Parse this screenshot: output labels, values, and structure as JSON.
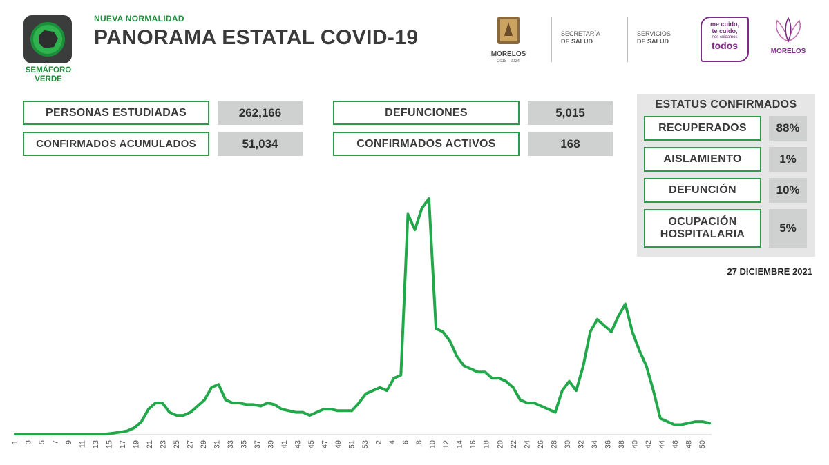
{
  "header": {
    "semaforo": "SEMÁFORO\nVERDE",
    "kicker": "NUEVA NORMALIDAD",
    "title": "PANORAMA ESTATAL COVID-19"
  },
  "logos": {
    "morelos": "MORELOS",
    "morelos_years": "2018 - 2024",
    "secretaria_line1": "SECRETARÍA",
    "secretaria_line2": "DE SALUD",
    "servicios_line1": "SERVICIOS",
    "servicios_line2": "DE SALUD",
    "campaign_line1": "me cuido,",
    "campaign_line2": "te cuido,",
    "campaign_line3": "nos cuidamos",
    "campaign_line4": "todos",
    "morelos_gov": "MORELOS"
  },
  "stats": [
    {
      "label": "PERSONAS ESTUDIADAS",
      "value": "262,166"
    },
    {
      "label": "CONFIRMADOS ACUMULADOS",
      "value": "51,034"
    },
    {
      "label": "DEFUNCIONES",
      "value": "5,015"
    },
    {
      "label": "CONFIRMADOS ACTIVOS",
      "value": "168"
    }
  ],
  "status": {
    "title": "ESTATUS CONFIRMADOS",
    "items": [
      {
        "label": "RECUPERADOS",
        "value": "88%"
      },
      {
        "label": "AISLAMIENTO",
        "value": "1%"
      },
      {
        "label": "DEFUNCIÓN",
        "value": "10%"
      },
      {
        "label": "OCUPACIÓN\nHOSPITALARIA",
        "value": "5%"
      }
    ]
  },
  "date": "27 DICIEMBRE 2021",
  "colors": {
    "green": "#2e9b4a",
    "line": "#22a84a",
    "gray": "#cfd0d0"
  },
  "chart_data": {
    "type": "line",
    "title": "",
    "xlabel": "",
    "ylabel": "",
    "grid": false,
    "tick_labels": [
      "1",
      "3",
      "5",
      "7",
      "9",
      "11",
      "13",
      "15",
      "17",
      "19",
      "21",
      "23",
      "25",
      "27",
      "29",
      "31",
      "33",
      "35",
      "37",
      "39",
      "41",
      "43",
      "45",
      "47",
      "49",
      "51",
      "53",
      "2",
      "4",
      "6",
      "8",
      "10",
      "12",
      "14",
      "16",
      "18",
      "20",
      "22",
      "24",
      "26",
      "28",
      "30",
      "32",
      "34",
      "36",
      "38",
      "40",
      "42",
      "44",
      "46",
      "48",
      "50"
    ],
    "series": [
      {
        "values": [
          0,
          0,
          0,
          0,
          0,
          0,
          0,
          0,
          0,
          0,
          0,
          0,
          0,
          0,
          0.3,
          0.6,
          1,
          2,
          4,
          8,
          10,
          10,
          7,
          6,
          6,
          7,
          9,
          11,
          15,
          16,
          11,
          10,
          10,
          9.5,
          9.5,
          9,
          10,
          9.5,
          8,
          7.5,
          7,
          7,
          6,
          7,
          8,
          8,
          7.5,
          7.5,
          7.5,
          10,
          13,
          14,
          15,
          14,
          18,
          19,
          71,
          66,
          73,
          76,
          34,
          33,
          30,
          25,
          22,
          21,
          20,
          20,
          18,
          18,
          17,
          15,
          11,
          10,
          10,
          9,
          8,
          7,
          14,
          17,
          14,
          22,
          33,
          37,
          35,
          33,
          38,
          42,
          33,
          27,
          22,
          14,
          5,
          4,
          3,
          3,
          3.5,
          4,
          4,
          3.5
        ]
      }
    ]
  }
}
